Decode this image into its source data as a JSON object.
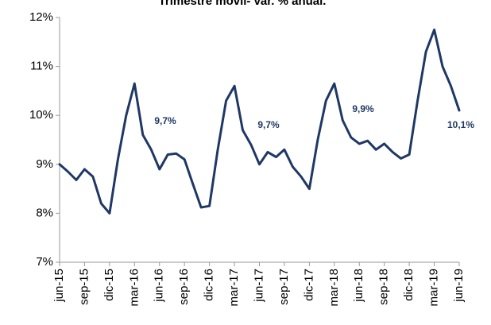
{
  "chart_data": {
    "type": "line",
    "title": "Trimestre móvil- var. % anual.",
    "categories": [
      "jun-15",
      null,
      null,
      "sep-15",
      null,
      null,
      "dic-15",
      null,
      null,
      "mar-16",
      null,
      null,
      "jun-16",
      null,
      null,
      "sep-16",
      null,
      null,
      "dic-16",
      null,
      null,
      "mar-17",
      null,
      null,
      "jun-17",
      null,
      null,
      "sep-17",
      null,
      null,
      "dic-17",
      null,
      null,
      "mar-18",
      null,
      null,
      "jun-18",
      null,
      null,
      "sep-18",
      null,
      null,
      "dic-18",
      null,
      null,
      "mar-19",
      null,
      null,
      "jun-19"
    ],
    "series": [
      {
        "name": null,
        "color": "#1f3864",
        "values": [
          9.0,
          8.85,
          8.68,
          8.9,
          8.75,
          8.2,
          8.0,
          9.1,
          10.0,
          10.65,
          9.6,
          9.3,
          8.9,
          9.2,
          9.22,
          9.1,
          8.6,
          8.12,
          8.15,
          9.3,
          10.3,
          10.6,
          9.7,
          9.4,
          9.0,
          9.25,
          9.15,
          9.3,
          8.95,
          8.75,
          8.5,
          9.5,
          10.3,
          10.65,
          9.9,
          9.55,
          9.42,
          9.48,
          9.3,
          9.42,
          9.25,
          9.12,
          9.2,
          10.3,
          11.3,
          11.75,
          11.0,
          10.6,
          10.1
        ]
      }
    ],
    "ylim": [
      7,
      12
    ],
    "yticks": [
      {
        "value": 7,
        "label": "7%"
      },
      {
        "value": 8,
        "label": "8%"
      },
      {
        "value": 9,
        "label": "9%"
      },
      {
        "value": 10,
        "label": "10%"
      },
      {
        "value": 11,
        "label": "11%"
      },
      {
        "value": 12,
        "label": "12%"
      }
    ],
    "grid": false,
    "annotations": [
      "9,7%",
      "9,7%",
      "9,9%",
      "10,1%"
    ]
  }
}
